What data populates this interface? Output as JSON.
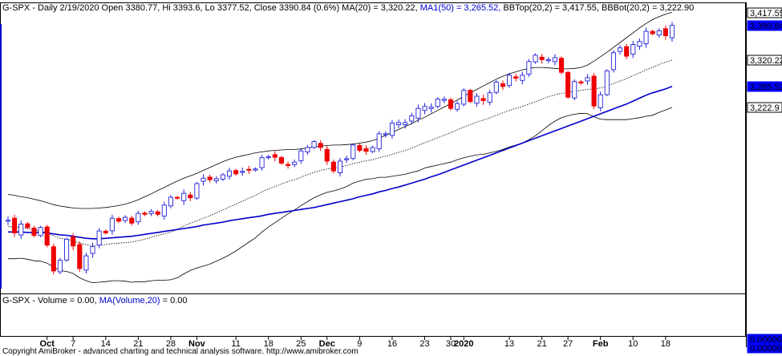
{
  "header": {
    "symbol": "G-SPX",
    "info": " - Daily 2/19/2020 Open 3380.77, Hi 3393.6, Lo 3377.52, Close 3390.84 (0.6%) ",
    "ma20_text": "MA(20) = 3,320.22, ",
    "ma50_text": "MA1(50) = 3,265.52, ",
    "bbtop_text": "BBTop(20,2) = 3,417.55, ",
    "bbbot_text": "BBBot(20,2) = 3,222.90"
  },
  "volume_header": {
    "prefix": "G-SPX - Volume = 0.00, ",
    "ma_text": "MA(Volume,20)",
    "suffix": " = 0.00"
  },
  "footer": "Copyright AmiBroker - advanced charting and technical analysis software. http://www.amibroker.com",
  "price_tags": [
    {
      "text": "3,417.55",
      "value": 3417.55,
      "style": "black"
    },
    {
      "text": "3,390.84",
      "value": 3390.84,
      "style": "blue"
    },
    {
      "text": "3,320.22",
      "value": 3320.22,
      "style": "black"
    },
    {
      "text": "3,265.52",
      "value": 3265.52,
      "style": "blue"
    },
    {
      "text": "3,222.9",
      "value": 3222.9,
      "style": "black"
    }
  ],
  "volume_tags": [
    {
      "text": "0.00000",
      "style": "blue"
    },
    {
      "text": "0.00000",
      "style": "blue"
    }
  ],
  "colors": {
    "up": "#2222dd",
    "down": "#ee0000",
    "ma50": "#0000cc",
    "bands": "#000000",
    "ma20": "#000000",
    "blue_tag": "#0000ff",
    "frame": "#000000",
    "axis_month": "#0000aa"
  },
  "chart_data": {
    "type": "candlestick",
    "title": "G-SPX - Daily 2/19/2020",
    "x_tick_labels": [
      {
        "label": "Oct",
        "date": "2019-10-01",
        "bold": true
      },
      {
        "label": "7",
        "date": "2019-10-07"
      },
      {
        "label": "14",
        "date": "2019-10-14"
      },
      {
        "label": "21",
        "date": "2019-10-21"
      },
      {
        "label": "28",
        "date": "2019-10-28"
      },
      {
        "label": "Nov",
        "date": "2019-11-01",
        "bold": true
      },
      {
        "label": "11",
        "date": "2019-11-11"
      },
      {
        "label": "18",
        "date": "2019-11-18"
      },
      {
        "label": "25",
        "date": "2019-11-25"
      },
      {
        "label": "Dec",
        "date": "2019-12-02",
        "bold": true
      },
      {
        "label": "9",
        "date": "2019-12-09"
      },
      {
        "label": "16",
        "date": "2019-12-16"
      },
      {
        "label": "23",
        "date": "2019-12-23"
      },
      {
        "label": "30",
        "date": "2019-12-30"
      },
      {
        "label": "2020",
        "date": "2020-01-02",
        "bold": true
      },
      {
        "label": "13",
        "date": "2020-01-13"
      },
      {
        "label": "21",
        "date": "2020-01-21"
      },
      {
        "label": "27",
        "date": "2020-01-27"
      },
      {
        "label": "Feb",
        "date": "2020-02-03",
        "bold": true
      },
      {
        "label": "10",
        "date": "2020-02-10"
      },
      {
        "label": "18",
        "date": "2020-02-18"
      }
    ],
    "ylim": [
      2860,
      3430
    ],
    "dates": [
      "2019-09-23",
      "2019-09-24",
      "2019-09-25",
      "2019-09-26",
      "2019-09-27",
      "2019-09-30",
      "2019-10-01",
      "2019-10-02",
      "2019-10-03",
      "2019-10-04",
      "2019-10-07",
      "2019-10-08",
      "2019-10-09",
      "2019-10-10",
      "2019-10-11",
      "2019-10-14",
      "2019-10-15",
      "2019-10-16",
      "2019-10-17",
      "2019-10-18",
      "2019-10-21",
      "2019-10-22",
      "2019-10-23",
      "2019-10-24",
      "2019-10-25",
      "2019-10-28",
      "2019-10-29",
      "2019-10-30",
      "2019-10-31",
      "2019-11-01",
      "2019-11-04",
      "2019-11-05",
      "2019-11-06",
      "2019-11-07",
      "2019-11-08",
      "2019-11-11",
      "2019-11-12",
      "2019-11-13",
      "2019-11-14",
      "2019-11-15",
      "2019-11-18",
      "2019-11-19",
      "2019-11-20",
      "2019-11-21",
      "2019-11-22",
      "2019-11-25",
      "2019-11-26",
      "2019-11-27",
      "2019-11-29",
      "2019-12-02",
      "2019-12-03",
      "2019-12-04",
      "2019-12-05",
      "2019-12-06",
      "2019-12-09",
      "2019-12-10",
      "2019-12-11",
      "2019-12-12",
      "2019-12-13",
      "2019-12-16",
      "2019-12-17",
      "2019-12-18",
      "2019-12-19",
      "2019-12-20",
      "2019-12-23",
      "2019-12-24",
      "2019-12-26",
      "2019-12-27",
      "2019-12-30",
      "2019-12-31",
      "2020-01-02",
      "2020-01-03",
      "2020-01-06",
      "2020-01-07",
      "2020-01-08",
      "2020-01-09",
      "2020-01-10",
      "2020-01-13",
      "2020-01-14",
      "2020-01-15",
      "2020-01-16",
      "2020-01-17",
      "2020-01-21",
      "2020-01-22",
      "2020-01-23",
      "2020-01-24",
      "2020-01-27",
      "2020-01-28",
      "2020-01-29",
      "2020-01-30",
      "2020-01-31",
      "2020-02-03",
      "2020-02-04",
      "2020-02-05",
      "2020-02-06",
      "2020-02-07",
      "2020-02-10",
      "2020-02-11",
      "2020-02-12",
      "2020-02-13",
      "2020-02-14",
      "2020-02-18",
      "2020-02-19"
    ],
    "close": [
      2992,
      2966,
      2984,
      2977,
      2961,
      2977,
      2941,
      2888,
      2910,
      2953,
      2939,
      2893,
      2919,
      2938,
      2970,
      2966,
      2996,
      2990,
      2998,
      2986,
      3006,
      3004,
      3010,
      3004,
      3023,
      3039,
      3037,
      3047,
      3038,
      3067,
      3078,
      3075,
      3077,
      3085,
      3093,
      3087,
      3092,
      3095,
      3097,
      3120,
      3122,
      3121,
      3109,
      3104,
      3111,
      3134,
      3141,
      3153,
      3141,
      3113,
      3093,
      3113,
      3118,
      3146,
      3135,
      3133,
      3141,
      3169,
      3169,
      3191,
      3192,
      3192,
      3206,
      3221,
      3225,
      3224,
      3240,
      3240,
      3221,
      3231,
      3258,
      3235,
      3246,
      3237,
      3253,
      3275,
      3266,
      3289,
      3283,
      3289,
      3317,
      3330,
      3321,
      3321,
      3325,
      3295,
      3244,
      3276,
      3273,
      3284,
      3226,
      3249,
      3298,
      3335,
      3345,
      3328,
      3352,
      3358,
      3379,
      3374,
      3380,
      3370,
      3391
    ],
    "ma20": [
      2979,
      2978,
      2977,
      2975,
      2972,
      2970,
      2966,
      2960,
      2955,
      2953,
      2950,
      2945,
      2942,
      2940,
      2941,
      2942,
      2944,
      2945,
      2946,
      2947,
      2950,
      2953,
      2957,
      2961,
      2964,
      2968,
      2973,
      2980,
      2986,
      2991,
      2996,
      3001,
      3007,
      3013,
      3019,
      3025,
      3031,
      3037,
      3043,
      3050,
      3056,
      3061,
      3066,
      3071,
      3075,
      3080,
      3085,
      3090,
      3094,
      3097,
      3099,
      3101,
      3104,
      3108,
      3111,
      3114,
      3116,
      3120,
      3123,
      3127,
      3131,
      3135,
      3140,
      3145,
      3151,
      3156,
      3161,
      3166,
      3171,
      3177,
      3183,
      3188,
      3193,
      3197,
      3202,
      3207,
      3212,
      3217,
      3221,
      3225,
      3230,
      3235,
      3240,
      3245,
      3249,
      3252,
      3254,
      3256,
      3258,
      3260,
      3261,
      3263,
      3267,
      3272,
      3277,
      3282,
      3288,
      3294,
      3300,
      3305,
      3311,
      3316,
      3320
    ],
    "ma50": [
      2968,
      2968,
      2968,
      2967,
      2967,
      2967,
      2966,
      2964,
      2962,
      2961,
      2959,
      2957,
      2955,
      2954,
      2954,
      2955,
      2956,
      2957,
      2958,
      2959,
      2961,
      2963,
      2965,
      2967,
      2969,
      2971,
      2973,
      2975,
      2977,
      2979,
      2982,
      2984,
      2986,
      2988,
      2991,
      2993,
      2995,
      2997,
      2999,
      3001,
      3004,
      3006,
      3008,
      3010,
      3012,
      3014,
      3016,
      3018,
      3021,
      3024,
      3027,
      3030,
      3033,
      3036,
      3040,
      3043,
      3046,
      3050,
      3053,
      3057,
      3060,
      3064,
      3068,
      3072,
      3076,
      3081,
      3085,
      3090,
      3095,
      3100,
      3105,
      3110,
      3115,
      3120,
      3125,
      3130,
      3135,
      3140,
      3145,
      3150,
      3155,
      3160,
      3165,
      3170,
      3175,
      3180,
      3185,
      3190,
      3195,
      3200,
      3205,
      3210,
      3215,
      3220,
      3225,
      3230,
      3236,
      3242,
      3248,
      3253,
      3257,
      3261,
      3266
    ],
    "bb_top": [
      3045,
      3043,
      3040,
      3038,
      3035,
      3032,
      3028,
      3024,
      3021,
      3019,
      3017,
      3016,
      3016,
      3016,
      3017,
      3018,
      3020,
      3022,
      3025,
      3029,
      3034,
      3040,
      3046,
      3053,
      3059,
      3066,
      3072,
      3078,
      3083,
      3088,
      3094,
      3100,
      3106,
      3112,
      3117,
      3121,
      3124,
      3127,
      3130,
      3132,
      3134,
      3135,
      3136,
      3137,
      3137,
      3138,
      3140,
      3142,
      3144,
      3145,
      3146,
      3146,
      3147,
      3148,
      3150,
      3152,
      3155,
      3160,
      3166,
      3172,
      3178,
      3184,
      3190,
      3197,
      3203,
      3210,
      3217,
      3224,
      3231,
      3238,
      3246,
      3253,
      3260,
      3267,
      3274,
      3281,
      3287,
      3292,
      3296,
      3300,
      3303,
      3305,
      3305,
      3304,
      3303,
      3302,
      3302,
      3303,
      3305,
      3310,
      3318,
      3327,
      3336,
      3346,
      3356,
      3366,
      3376,
      3386,
      3395,
      3403,
      3409,
      3414,
      3418
    ],
    "bb_bot": [
      2913,
      2913,
      2914,
      2912,
      2909,
      2908,
      2904,
      2896,
      2889,
      2887,
      2883,
      2874,
      2868,
      2864,
      2865,
      2866,
      2868,
      2868,
      2867,
      2865,
      2866,
      2866,
      2868,
      2869,
      2869,
      2870,
      2874,
      2882,
      2889,
      2894,
      2898,
      2902,
      2908,
      2914,
      2921,
      2929,
      2938,
      2947,
      2956,
      2968,
      2978,
      2987,
      2996,
      3005,
      3013,
      3022,
      3030,
      3038,
      3044,
      3049,
      3052,
      3056,
      3061,
      3068,
      3072,
      3076,
      3077,
      3080,
      3080,
      3082,
      3084,
      3086,
      3090,
      3093,
      3099,
      3102,
      3105,
      3108,
      3111,
      3116,
      3120,
      3123,
      3126,
      3127,
      3130,
      3133,
      3137,
      3142,
      3146,
      3150,
      3157,
      3165,
      3175,
      3186,
      3195,
      3202,
      3206,
      3209,
      3211,
      3210,
      3204,
      3199,
      3198,
      3198,
      3198,
      3198,
      3200,
      3202,
      3205,
      3207,
      3213,
      3218,
      3223
    ]
  }
}
